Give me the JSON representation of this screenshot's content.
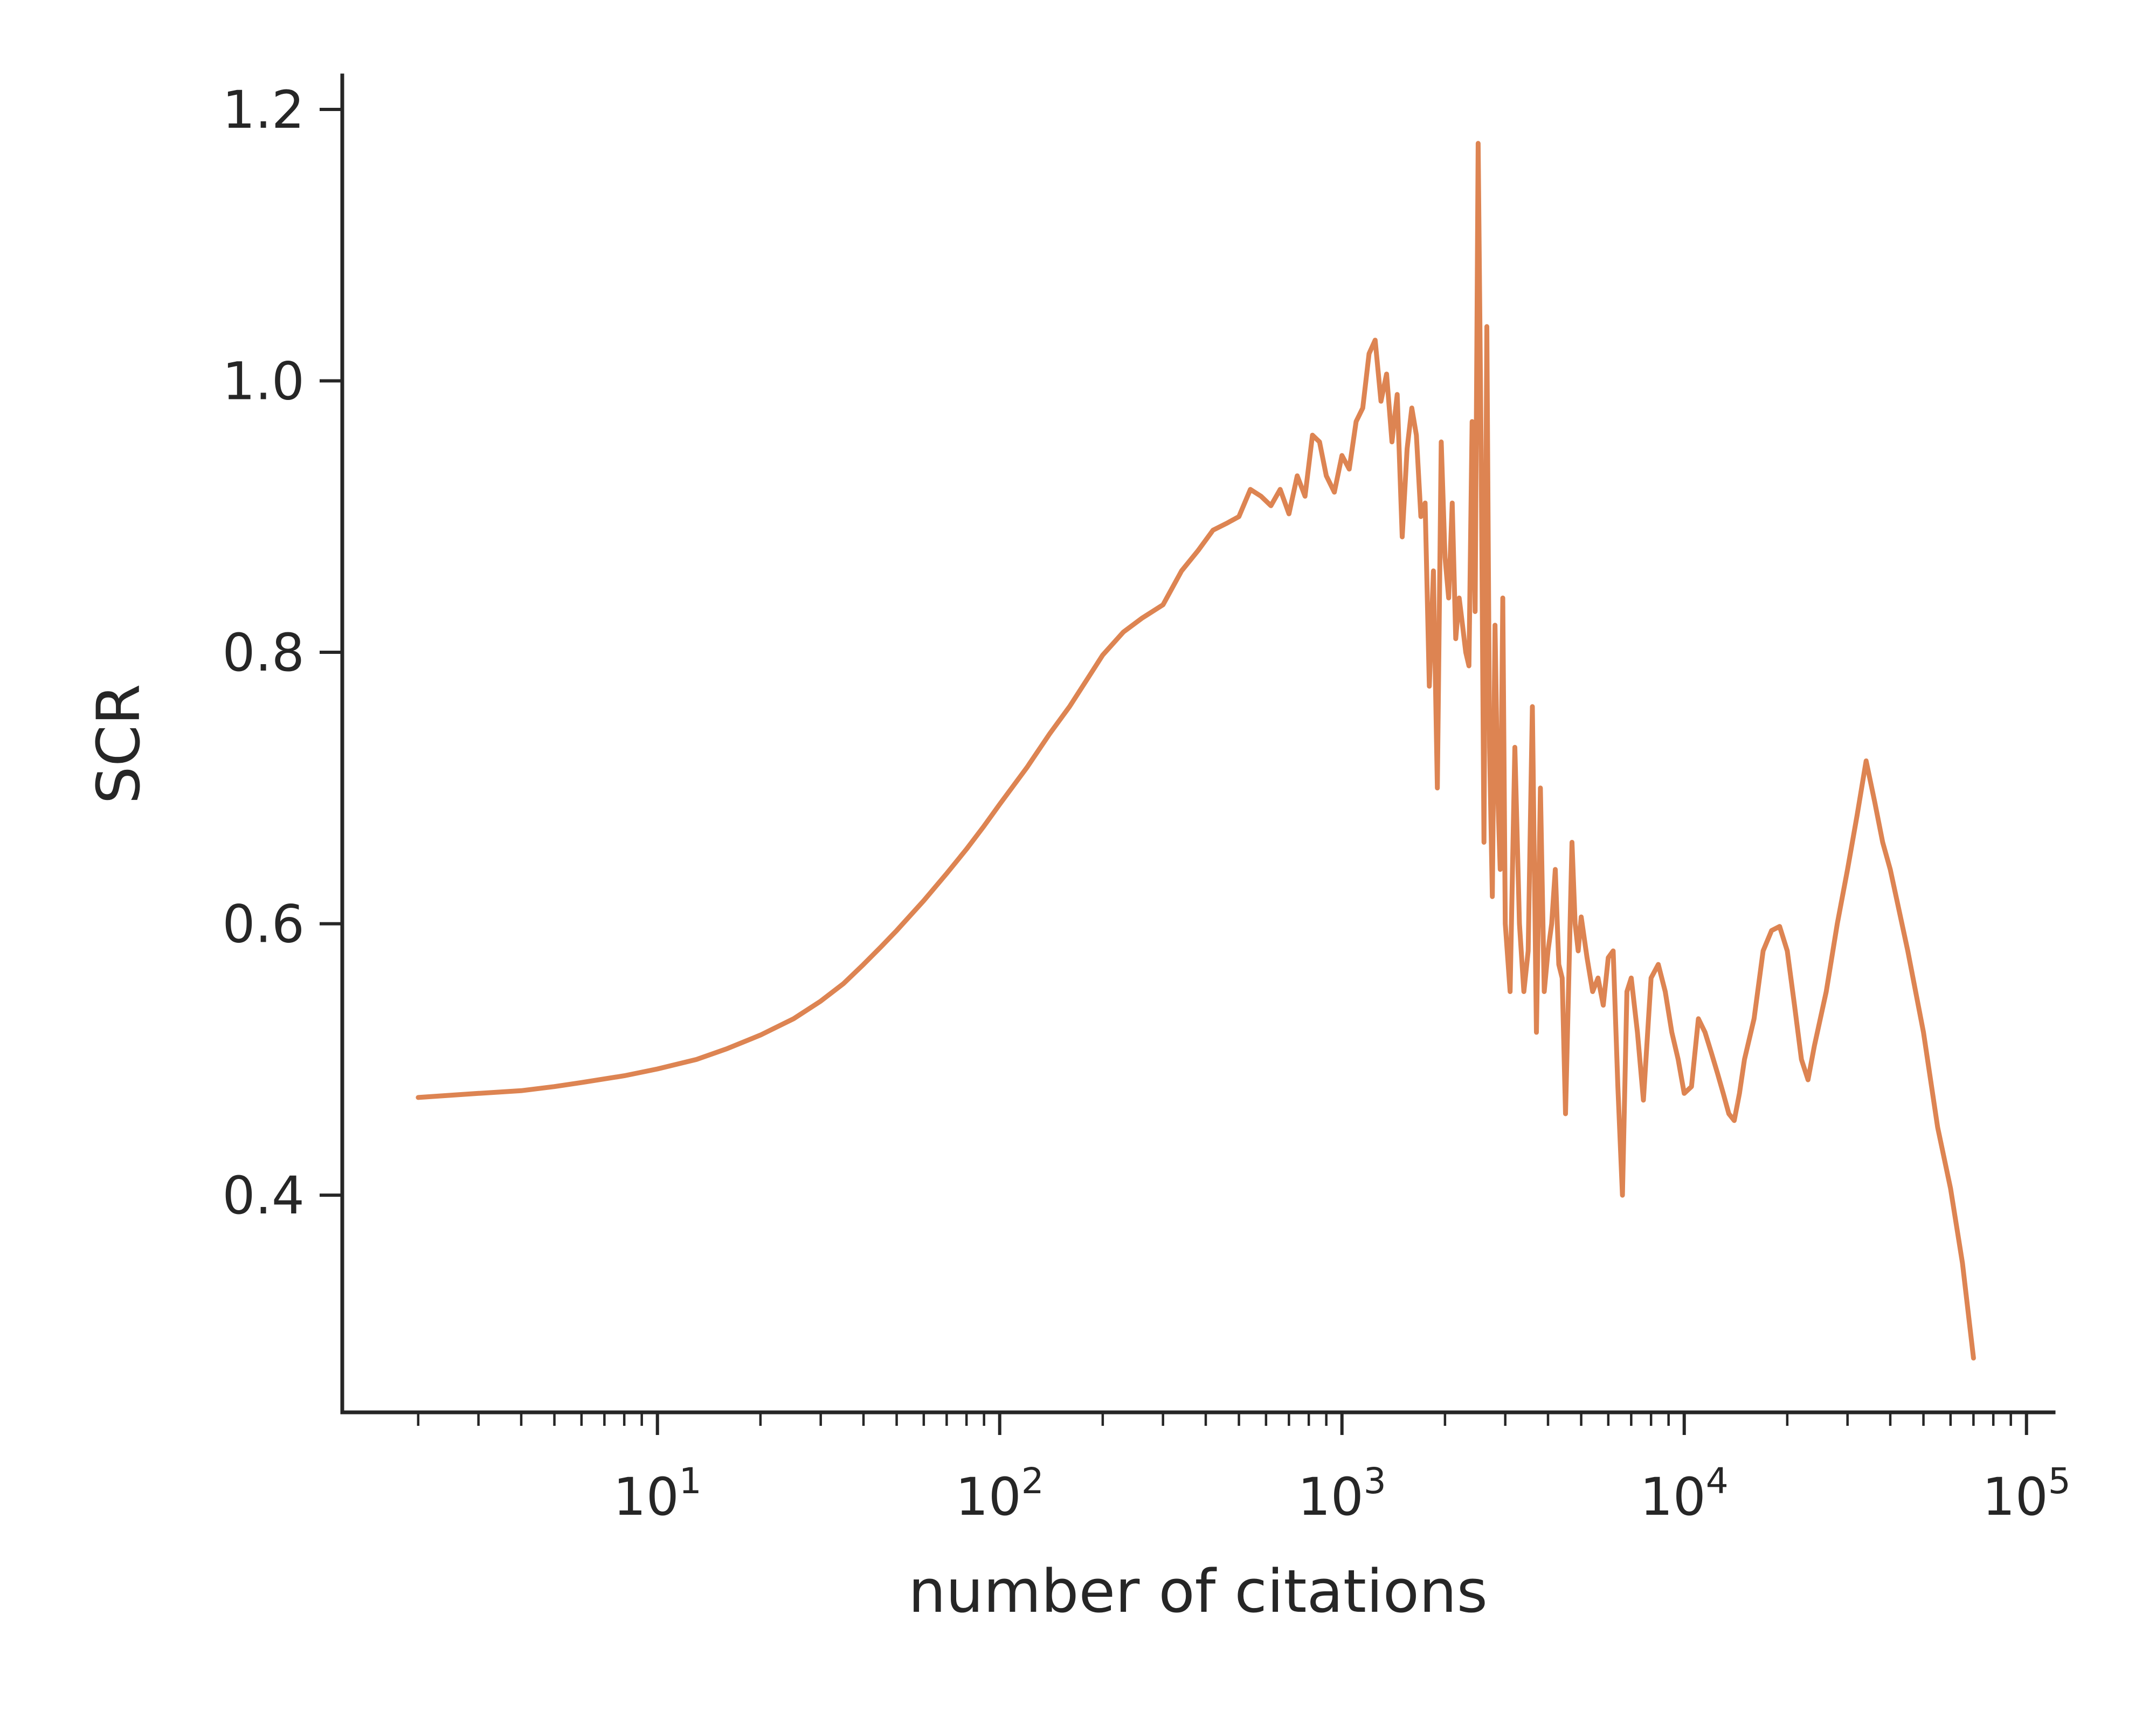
{
  "chart_data": {
    "type": "line",
    "title": "",
    "xlabel": "number of citations",
    "ylabel": "SCR",
    "x_scale": "log",
    "xlim": [
      1.2,
      120000
    ],
    "ylim": [
      0.24,
      1.225
    ],
    "grid": false,
    "legend": "none",
    "x_ticks": [
      {
        "value": 10,
        "base": "10",
        "exp": "1"
      },
      {
        "value": 100,
        "base": "10",
        "exp": "2"
      },
      {
        "value": 1000,
        "base": "10",
        "exp": "3"
      },
      {
        "value": 10000,
        "base": "10",
        "exp": "4"
      },
      {
        "value": 100000,
        "base": "10",
        "exp": "5"
      }
    ],
    "y_ticks": [
      {
        "value": 0.4,
        "label": "0.4"
      },
      {
        "value": 0.6,
        "label": "0.6"
      },
      {
        "value": 0.8,
        "label": "0.8"
      },
      {
        "value": 1.0,
        "label": "1.0"
      },
      {
        "value": 1.2,
        "label": "1.2"
      }
    ],
    "series": [
      {
        "color": "#dd8452",
        "x": [
          2,
          3,
          4,
          5,
          6,
          8,
          10,
          13,
          16,
          20,
          25,
          30,
          35,
          40,
          45,
          50,
          60,
          70,
          80,
          90,
          100,
          120,
          140,
          160,
          180,
          200,
          230,
          260,
          300,
          340,
          380,
          420,
          460,
          500,
          540,
          580,
          620,
          660,
          700,
          740,
          780,
          820,
          860,
          900,
          950,
          1000,
          1050,
          1100,
          1150,
          1200,
          1250,
          1300,
          1350,
          1400,
          1450,
          1500,
          1550,
          1600,
          1650,
          1700,
          1750,
          1800,
          1850,
          1900,
          1950,
          2000,
          2050,
          2100,
          2150,
          2200,
          2250,
          2300,
          2350,
          2400,
          2450,
          2500,
          2550,
          2600,
          2650,
          2700,
          2750,
          2800,
          2850,
          2900,
          2950,
          3000,
          3100,
          3200,
          3300,
          3400,
          3500,
          3600,
          3700,
          3800,
          3900,
          4000,
          4100,
          4200,
          4300,
          4400,
          4500,
          4600,
          4700,
          4800,
          4900,
          5000,
          5200,
          5400,
          5600,
          5800,
          6000,
          6200,
          6400,
          6600,
          6800,
          7000,
          7300,
          7600,
          8000,
          8400,
          8800,
          9200,
          9600,
          10000,
          10500,
          11000,
          11500,
          12000,
          12500,
          13000,
          13500,
          14000,
          14500,
          15000,
          16000,
          17000,
          18000,
          19000,
          20000,
          21000,
          22000,
          23000,
          24000,
          26000,
          28000,
          30000,
          32000,
          34000,
          36000,
          38000,
          40000,
          45000,
          50000,
          55000,
          60000,
          65000,
          70000
        ],
        "y": [
          0.472,
          0.475,
          0.477,
          0.48,
          0.483,
          0.488,
          0.493,
          0.5,
          0.508,
          0.518,
          0.53,
          0.543,
          0.556,
          0.57,
          0.583,
          0.595,
          0.617,
          0.637,
          0.655,
          0.672,
          0.688,
          0.715,
          0.74,
          0.76,
          0.78,
          0.798,
          0.815,
          0.825,
          0.835,
          0.86,
          0.875,
          0.89,
          0.895,
          0.9,
          0.92,
          0.915,
          0.908,
          0.92,
          0.902,
          0.93,
          0.915,
          0.96,
          0.955,
          0.93,
          0.918,
          0.945,
          0.935,
          0.97,
          0.98,
          1.02,
          1.03,
          0.985,
          1.005,
          0.955,
          0.99,
          0.885,
          0.95,
          0.98,
          0.96,
          0.9,
          0.91,
          0.775,
          0.86,
          0.7,
          0.955,
          0.87,
          0.84,
          0.91,
          0.81,
          0.84,
          0.82,
          0.8,
          0.79,
          0.97,
          0.83,
          1.175,
          0.95,
          0.66,
          1.04,
          0.73,
          0.62,
          0.82,
          0.7,
          0.64,
          0.84,
          0.6,
          0.55,
          0.73,
          0.6,
          0.55,
          0.58,
          0.76,
          0.52,
          0.7,
          0.55,
          0.58,
          0.6,
          0.64,
          0.57,
          0.56,
          0.46,
          0.56,
          0.66,
          0.6,
          0.58,
          0.605,
          0.575,
          0.55,
          0.56,
          0.54,
          0.575,
          0.58,
          0.48,
          0.4,
          0.55,
          0.56,
          0.52,
          0.47,
          0.56,
          0.57,
          0.55,
          0.52,
          0.5,
          0.475,
          0.48,
          0.53,
          0.52,
          0.505,
          0.49,
          0.475,
          0.46,
          0.455,
          0.475,
          0.5,
          0.53,
          0.58,
          0.595,
          0.598,
          0.58,
          0.54,
          0.5,
          0.485,
          0.51,
          0.55,
          0.6,
          0.64,
          0.68,
          0.72,
          0.69,
          0.66,
          0.64,
          0.58,
          0.52,
          0.45,
          0.405,
          0.35,
          0.28
        ]
      }
    ]
  }
}
